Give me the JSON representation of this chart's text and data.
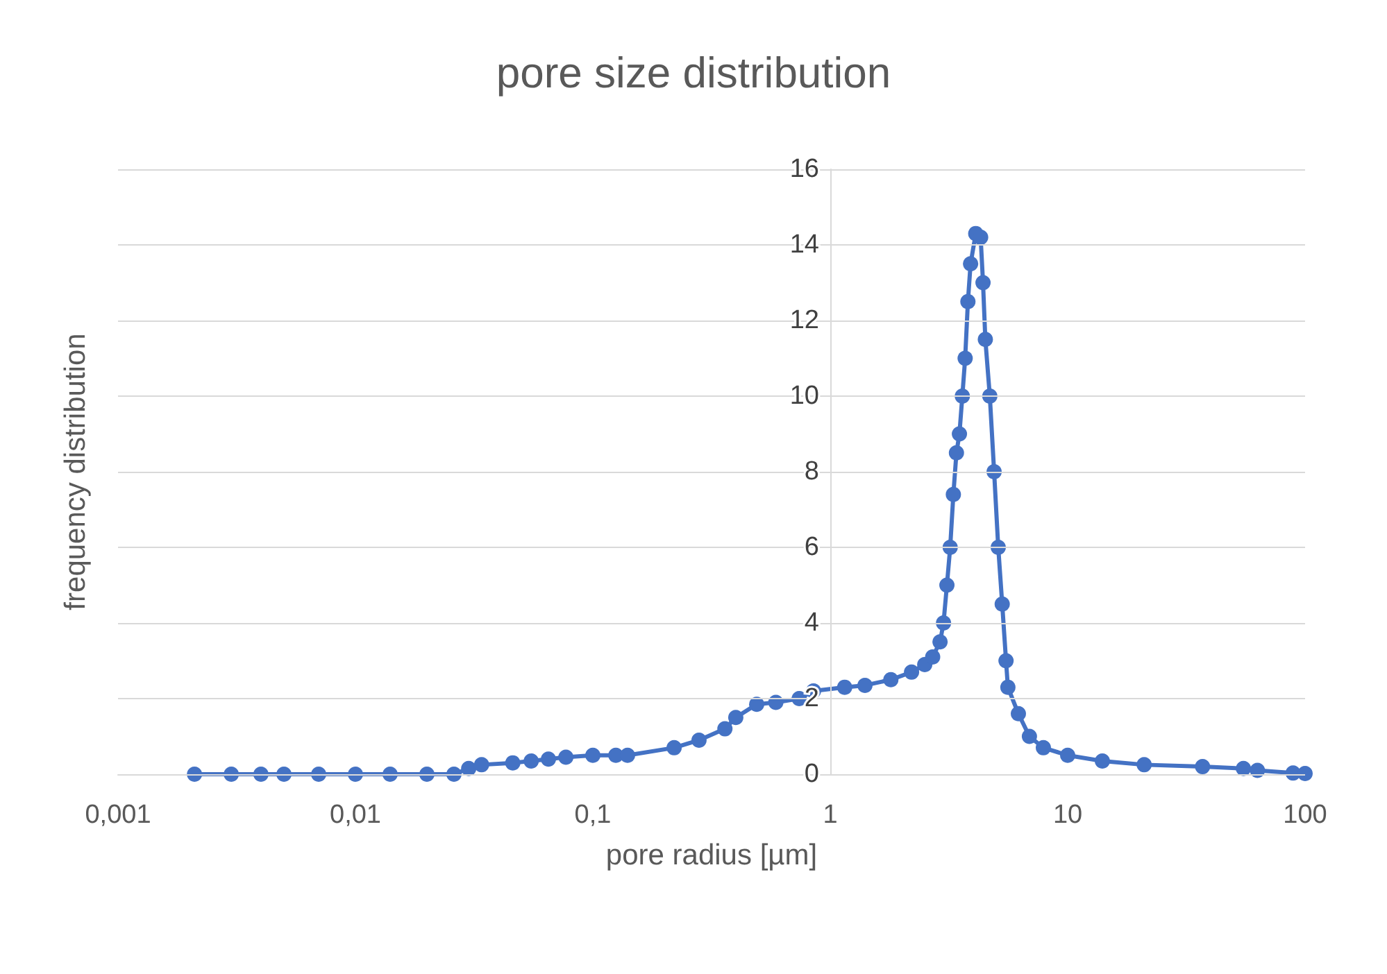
{
  "chart_data": {
    "type": "line",
    "title": "pore size distribution",
    "xlabel": "pore radius [µm]",
    "ylabel": "frequency distribution",
    "log": "x",
    "grid": "y",
    "marker": "circle",
    "line_style": "solid",
    "xlim": [
      0.001,
      100
    ],
    "xticks": [
      {
        "value": 0.001,
        "label": "0,001"
      },
      {
        "value": 0.01,
        "label": "0,01"
      },
      {
        "value": 0.1,
        "label": "0,1"
      },
      1,
      10,
      100
    ],
    "ylim": [
      0,
      16
    ],
    "yticks": [
      0,
      2,
      4,
      6,
      8,
      10,
      12,
      14,
      16
    ],
    "series": [
      {
        "color": "#4472c4",
        "x": [
          0.0021,
          0.003,
          0.004,
          0.005,
          0.007,
          0.01,
          0.014,
          0.02,
          0.026,
          0.03,
          0.034,
          0.046,
          0.055,
          0.065,
          0.077,
          0.1,
          0.125,
          0.14,
          0.22,
          0.28,
          0.36,
          0.4,
          0.49,
          0.59,
          0.74,
          0.85,
          1.15,
          1.4,
          1.8,
          2.2,
          2.5,
          2.7,
          2.9,
          3.0,
          3.1,
          3.2,
          3.3,
          3.4,
          3.5,
          3.6,
          3.7,
          3.8,
          3.9,
          4.1,
          4.3,
          4.4,
          4.5,
          4.7,
          4.9,
          5.1,
          5.3,
          5.5,
          5.6,
          6.2,
          6.9,
          7.9,
          10,
          14,
          21,
          37,
          55,
          63,
          89,
          100
        ],
        "values": [
          0,
          0,
          0,
          0,
          0,
          0,
          0,
          0,
          0,
          0.15,
          0.25,
          0.3,
          0.35,
          0.4,
          0.45,
          0.5,
          0.5,
          0.5,
          0.7,
          0.9,
          1.2,
          1.5,
          1.85,
          1.9,
          2.0,
          2.2,
          2.3,
          2.35,
          2.5,
          2.7,
          2.9,
          3.1,
          3.5,
          4.0,
          5.0,
          6.0,
          7.4,
          8.5,
          9.0,
          10.0,
          11.0,
          12.5,
          13.5,
          14.3,
          14.2,
          13.0,
          11.5,
          10.0,
          8.0,
          6.0,
          4.5,
          3.0,
          2.3,
          1.6,
          1.0,
          0.7,
          0.5,
          0.35,
          0.25,
          0.2,
          0.15,
          0.1,
          0.03,
          0.02
        ]
      }
    ]
  }
}
